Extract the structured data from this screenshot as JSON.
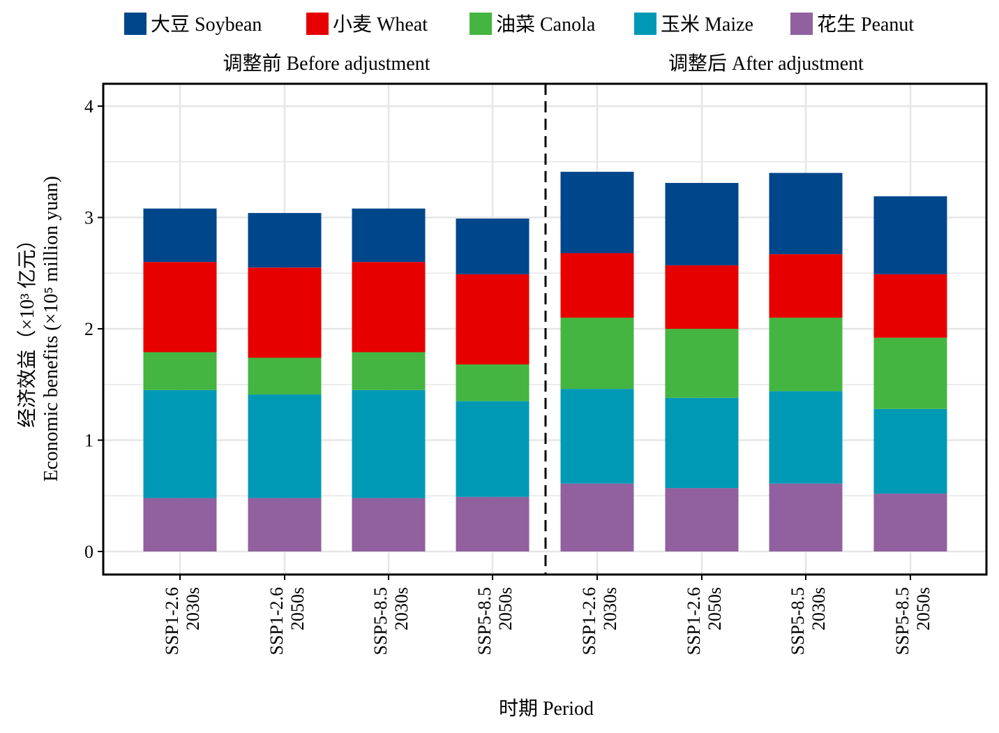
{
  "chart_data": {
    "type": "bar",
    "stacked": true,
    "xlabel": "时期 Period",
    "ylabel_line1": "经济效益（×10³ 亿元）",
    "ylabel_line2": "Economic benefits (×10⁵ million yuan)",
    "ylim": [
      0,
      4.2
    ],
    "yticks": [
      0,
      1,
      2,
      3,
      4
    ],
    "grid": true,
    "legend_position": "top",
    "groups": [
      {
        "label": "调整前 Before adjustment",
        "category_indices": [
          0,
          1,
          2,
          3
        ]
      },
      {
        "label": "调整后 After adjustment",
        "category_indices": [
          4,
          5,
          6,
          7
        ]
      }
    ],
    "categories": [
      {
        "scenario": "SSP1-2.6",
        "period": "2030s"
      },
      {
        "scenario": "SSP1-2.6",
        "period": "2050s"
      },
      {
        "scenario": "SSP5-8.5",
        "period": "2030s"
      },
      {
        "scenario": "SSP5-8.5",
        "period": "2050s"
      },
      {
        "scenario": "SSP1-2.6",
        "period": "2030s"
      },
      {
        "scenario": "SSP1-2.6",
        "period": "2050s"
      },
      {
        "scenario": "SSP5-8.5",
        "period": "2030s"
      },
      {
        "scenario": "SSP5-8.5",
        "period": "2050s"
      }
    ],
    "series": [
      {
        "name": "花生 Peanut",
        "color": "#91609f",
        "values": [
          0.48,
          0.48,
          0.48,
          0.49,
          0.61,
          0.57,
          0.61,
          0.52
        ]
      },
      {
        "name": "玉米 Maize",
        "color": "#0099b5",
        "values": [
          0.97,
          0.93,
          0.97,
          0.86,
          0.85,
          0.81,
          0.83,
          0.76
        ]
      },
      {
        "name": "油菜 Canola",
        "color": "#44b541",
        "values": [
          0.34,
          0.33,
          0.34,
          0.33,
          0.64,
          0.62,
          0.66,
          0.64
        ]
      },
      {
        "name": "小麦 Wheat",
        "color": "#e60000",
        "values": [
          0.81,
          0.81,
          0.81,
          0.81,
          0.58,
          0.57,
          0.57,
          0.57
        ]
      },
      {
        "name": "大豆 Soybean",
        "color": "#00468b",
        "values": [
          0.48,
          0.49,
          0.48,
          0.5,
          0.73,
          0.74,
          0.73,
          0.7
        ]
      }
    ],
    "legend_order": [
      "大豆 Soybean",
      "小麦 Wheat",
      "油菜 Canola",
      "玉米 Maize",
      "花生 Peanut"
    ]
  }
}
